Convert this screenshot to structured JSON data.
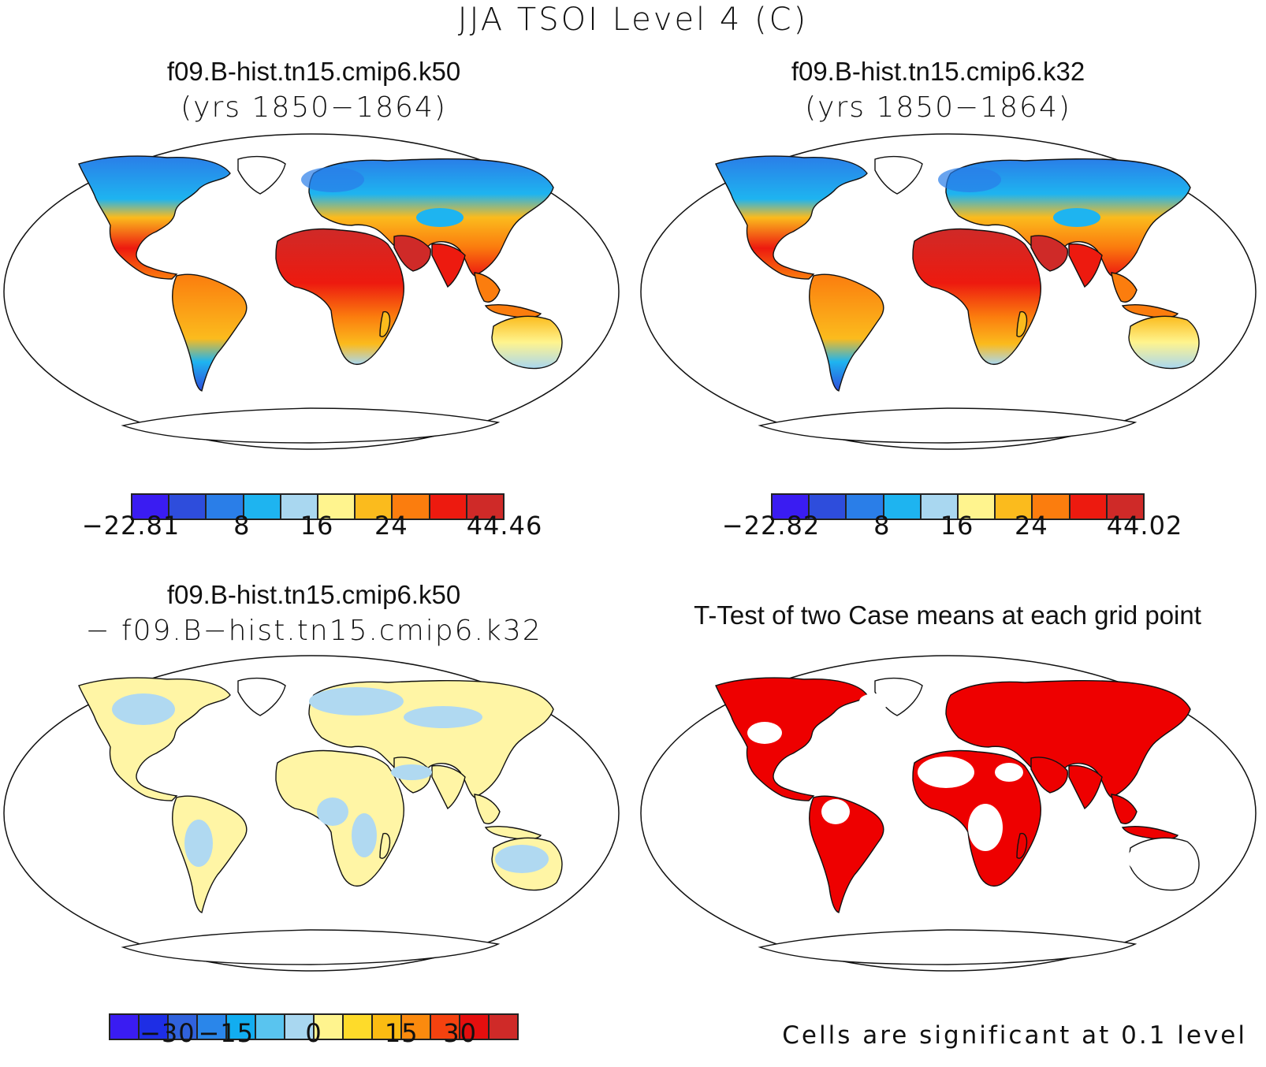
{
  "title": "JJA TSOI Level 4 (C)",
  "panels": {
    "tl": {
      "title": "f09.B-hist.tn15.cmip6.k50",
      "subtitle": "(yrs 1850−1864)"
    },
    "tr": {
      "title": "f09.B-hist.tn15.cmip6.k32",
      "subtitle": "(yrs 1850−1864)"
    },
    "bl": {
      "title": "f09.B-hist.tn15.cmip6.k50",
      "subtitle": "− f09.B−hist.tn15.cmip6.k32"
    },
    "br": {
      "title": "T-Test of two Case means at each grid point",
      "note": "Cells are significant at 0.1 level"
    }
  },
  "colorbars": {
    "tl": {
      "colors": [
        "#3a1cf2",
        "#2e4ddc",
        "#2a7ee8",
        "#1eb4f0",
        "#a9d7f0",
        "#fff48e",
        "#fbbb1d",
        "#fb7d0e",
        "#ed1a0f",
        "#cf2a28"
      ],
      "labels": [
        "−22.81",
        "8",
        "16",
        "24",
        "44.46"
      ]
    },
    "tr": {
      "colors": [
        "#3a1cf2",
        "#2e4ddc",
        "#2a7ee8",
        "#1eb4f0",
        "#a9d7f0",
        "#fff48e",
        "#fbbb1d",
        "#fb7d0e",
        "#ed1a0f",
        "#cf2a28"
      ],
      "labels": [
        "−22.82",
        "8",
        "16",
        "24",
        "44.02"
      ]
    },
    "bl": {
      "colors": [
        "#3a1cf2",
        "#1e2ee5",
        "#3062dc",
        "#2a86ea",
        "#12adf0",
        "#59c4ef",
        "#a9d7f0",
        "#fff48e",
        "#fedb2a",
        "#fbbb12",
        "#fb8a0e",
        "#f5420f",
        "#e50e0e",
        "#cf2a28"
      ],
      "labels": [
        "−30",
        "−15",
        "0",
        "15",
        "30"
      ]
    }
  },
  "colors": {
    "coast": "#111111",
    "significant": "#ee0000",
    "diff_warm": "#fff5a5",
    "diff_cool": "#b0d9f1"
  }
}
